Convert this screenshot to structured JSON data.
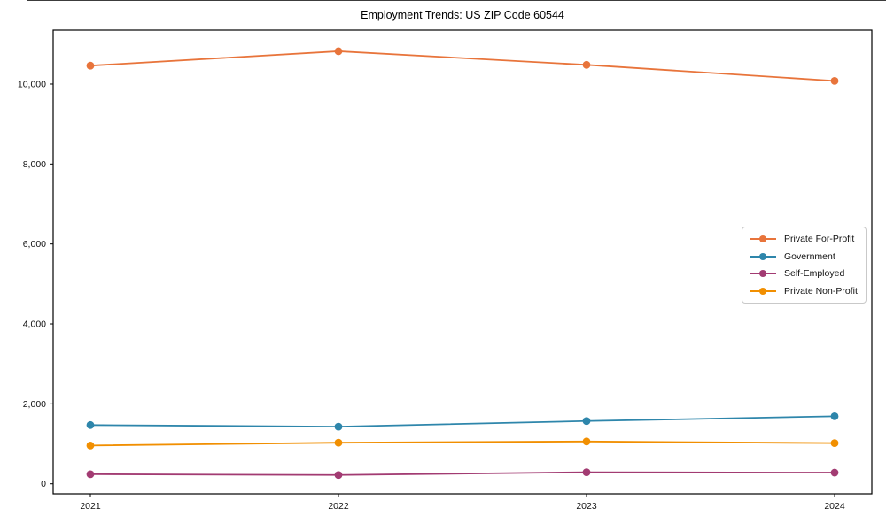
{
  "title": "Employment Trends: US ZIP Code 60544",
  "chart_data": {
    "type": "line",
    "title": "Employment Trends: US ZIP Code 60544",
    "categories": [
      "2021",
      "2022",
      "2023",
      "2024"
    ],
    "series": [
      {
        "name": "Private For-Profit",
        "color": "#E8743B",
        "values": [
          10460,
          10820,
          10480,
          10080
        ]
      },
      {
        "name": "Government",
        "color": "#2E86AB",
        "values": [
          1470,
          1430,
          1570,
          1690
        ]
      },
      {
        "name": "Self-Employed",
        "color": "#A23B72",
        "values": [
          240,
          220,
          290,
          280
        ]
      },
      {
        "name": "Private Non-Profit",
        "color": "#F18F01",
        "values": [
          960,
          1030,
          1060,
          1020
        ]
      }
    ],
    "xlabel": "",
    "ylabel": "",
    "ylim": [
      -250,
      11350
    ],
    "yticks": [
      0,
      2000,
      4000,
      6000,
      8000,
      10000
    ],
    "grid": false,
    "legend_position": "center right",
    "axis_color": "#000000",
    "marker": "circle"
  }
}
